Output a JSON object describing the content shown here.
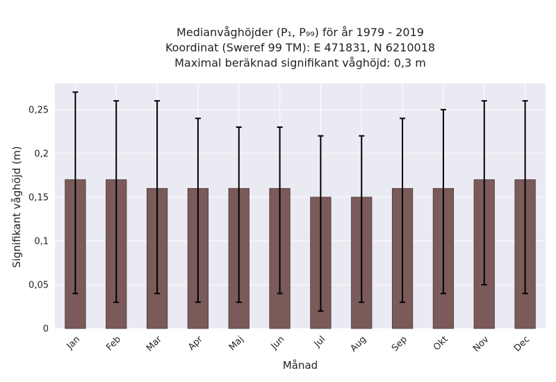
{
  "colors": {
    "plot_background": "#EAEAF2",
    "grid": "#FFFFFF",
    "bar_fill": "#7B5A5A",
    "bar_edge": "#4A3535",
    "error_bar": "#000000",
    "text": "#222222"
  },
  "chart_data": {
    "type": "bar",
    "title_lines": [
      "Medianvåghöjder (P₁, P₉₉) för år 1979 - 2019",
      "Koordinat (Sweref 99 TM): E 471831, N 6210018",
      "Maximal beräknad signifikant våghöjd: 0,3 m"
    ],
    "xlabel": "Månad",
    "ylabel": "Signifikant våghöjd (m)",
    "categories": [
      "Jan",
      "Feb",
      "Mar",
      "Apr",
      "Maj",
      "Jun",
      "Jul",
      "Aug",
      "Sep",
      "Okt",
      "Nov",
      "Dec"
    ],
    "values": [
      0.17,
      0.17,
      0.16,
      0.16,
      0.16,
      0.16,
      0.15,
      0.15,
      0.16,
      0.16,
      0.17,
      0.17
    ],
    "p1": [
      0.04,
      0.03,
      0.04,
      0.03,
      0.03,
      0.04,
      0.02,
      0.03,
      0.03,
      0.04,
      0.05,
      0.04
    ],
    "p99": [
      0.27,
      0.26,
      0.26,
      0.24,
      0.23,
      0.23,
      0.22,
      0.22,
      0.24,
      0.25,
      0.26,
      0.26
    ],
    "ylim": [
      0,
      0.28
    ],
    "yticks": [
      0,
      0.05,
      0.1,
      0.15,
      0.2,
      0.25
    ],
    "ytick_labels": [
      "0",
      "0,05",
      "0,1",
      "0,15",
      "0,2",
      "0,25"
    ],
    "grid": true,
    "legend": "none"
  }
}
